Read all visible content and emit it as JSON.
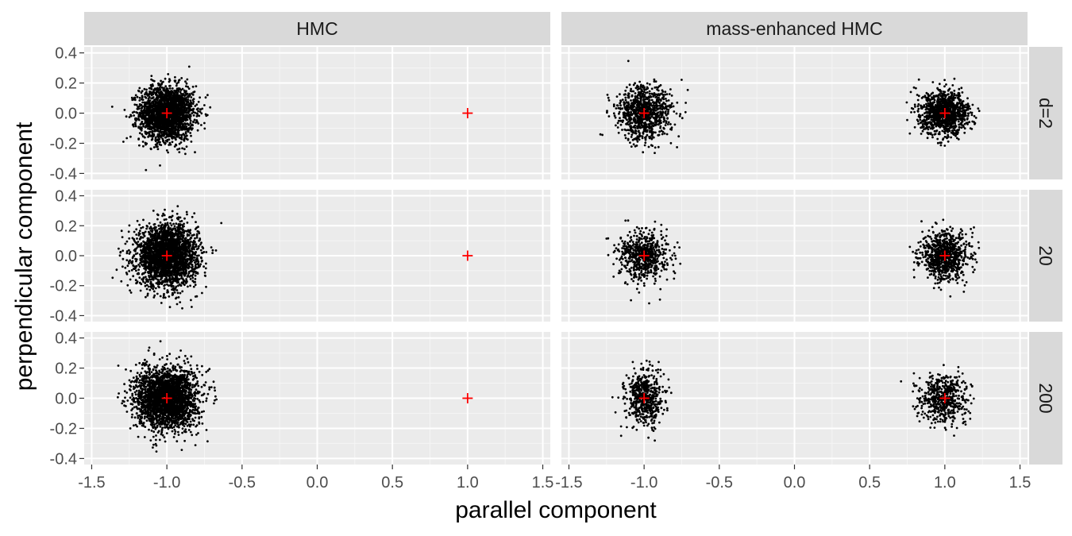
{
  "chart_data": {
    "type": "scatter",
    "facet_columns": [
      "HMC",
      "mass-enhanced HMC"
    ],
    "facet_rows": [
      "d=2",
      "20",
      "200"
    ],
    "xlabel": "parallel component",
    "ylabel": "perpendicular component",
    "xlim": [
      -1.55,
      1.55
    ],
    "ylim": [
      -0.44,
      0.44
    ],
    "x_ticks": [
      -1.5,
      -1.0,
      -0.5,
      0.0,
      0.5,
      1.0,
      1.5
    ],
    "x_tick_labels": [
      "-1.5",
      "-1.0",
      "-0.5",
      "0.0",
      "0.5",
      "1.0",
      "1.5"
    ],
    "y_ticks": [
      -0.4,
      -0.2,
      0.0,
      0.2,
      0.4
    ],
    "y_tick_labels": [
      "-0.4",
      "-0.2",
      "0.0",
      "0.2",
      "0.4"
    ],
    "modes": [
      {
        "x": -1.0,
        "y": 0.0
      },
      {
        "x": 1.0,
        "y": 0.0
      }
    ],
    "point_color": "#000000",
    "mode_marker_color": "#ff0000",
    "panel_background": "#ebebeb",
    "strip_background": "#d9d9d9",
    "grid": true,
    "clusters": {
      "HMC": [
        {
          "row": "d=2",
          "center": [
            -1.0,
            0.0
          ],
          "sd": [
            0.09,
            0.09
          ],
          "n": 2200
        },
        {
          "row": "20",
          "center": [
            -1.0,
            0.0
          ],
          "sd": [
            0.1,
            0.1
          ],
          "n": 2600
        },
        {
          "row": "200",
          "center": [
            -1.0,
            0.0
          ],
          "sd": [
            0.1,
            0.1
          ],
          "n": 2600
        }
      ],
      "mass-enhanced HMC": [
        {
          "row": "d=2",
          "center": [
            -1.0,
            0.0
          ],
          "sd": [
            0.09,
            0.09
          ],
          "n": 900
        },
        {
          "row": "d=2",
          "center": [
            1.0,
            0.0
          ],
          "sd": [
            0.08,
            0.07
          ],
          "n": 1100
        },
        {
          "row": "20",
          "center": [
            -1.0,
            0.0
          ],
          "sd": [
            0.08,
            0.08
          ],
          "n": 650
        },
        {
          "row": "20",
          "center": [
            1.0,
            0.0
          ],
          "sd": [
            0.08,
            0.08
          ],
          "n": 800
        },
        {
          "row": "200",
          "center": [
            -1.0,
            0.0
          ],
          "sd": [
            0.06,
            0.09
          ],
          "n": 550
        },
        {
          "row": "200",
          "center": [
            1.0,
            0.0
          ],
          "sd": [
            0.08,
            0.08
          ],
          "n": 550
        }
      ]
    }
  }
}
